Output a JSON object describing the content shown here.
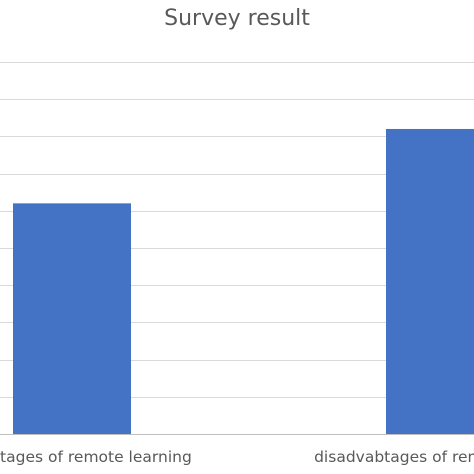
{
  "chart_data": {
    "type": "bar",
    "title": "Survey result",
    "categories": [
      "advantages of remote learning",
      "disadvabtages of remote learning"
    ],
    "series": [
      {
        "values": [
          62,
          82
        ]
      }
    ],
    "ylim": [
      0,
      100
    ],
    "grid": true,
    "colors": {
      "bar": "#4472C4",
      "grid": "#D9D9D9",
      "text": "#595959"
    }
  }
}
